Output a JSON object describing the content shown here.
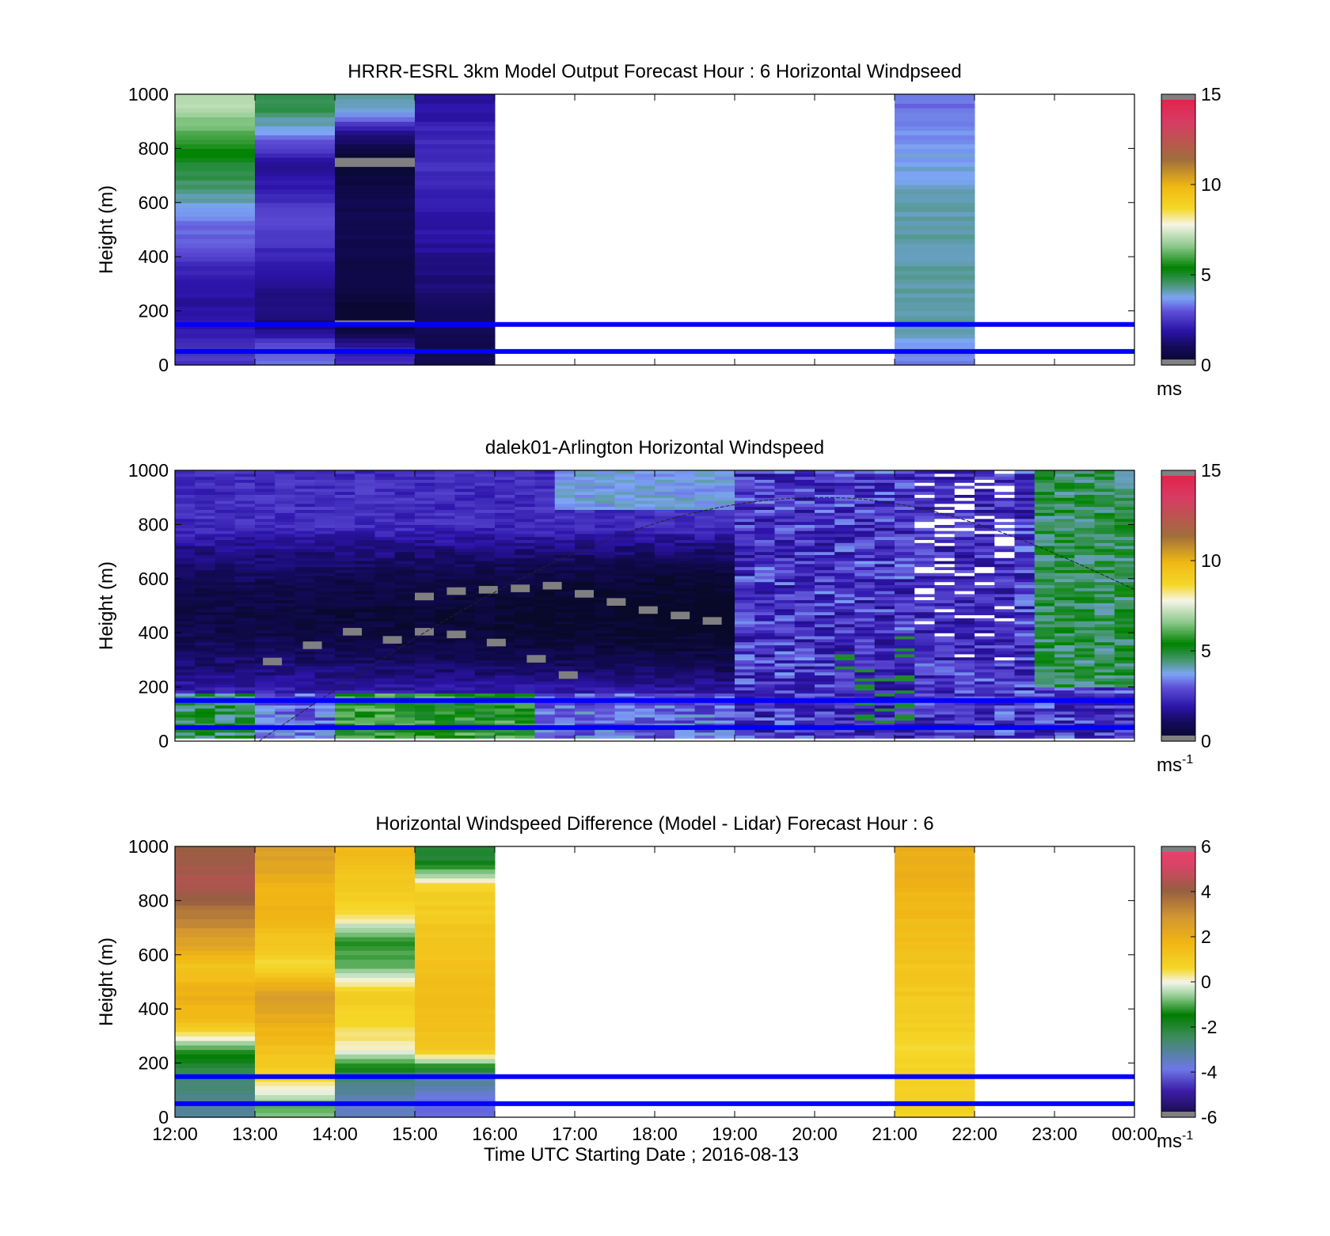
{
  "colors": {
    "ref_line": "#0000ff",
    "pbl_curve": "#222222",
    "axis": "#000000"
  },
  "x_tick_labels": [
    "12:00",
    "13:00",
    "14:00",
    "15:00",
    "16:00",
    "17:00",
    "18:00",
    "19:00",
    "20:00",
    "21:00",
    "22:00",
    "23:00",
    "00:00"
  ],
  "chart_data": [
    {
      "type": "heatmap",
      "title": "HRRR-ESRL 3km Model Output   Forecast Hour : 6 Horizontal Windpseed",
      "xlabel": "",
      "ylabel": "Height (m)",
      "xlim_hours": [
        12,
        24
      ],
      "ylim": [
        0,
        1000
      ],
      "y_ticks": [
        0,
        200,
        400,
        600,
        800,
        1000
      ],
      "colorbar": {
        "min": 0,
        "max": 15,
        "ticks": [
          0,
          5,
          10,
          15
        ],
        "unit": "ms",
        "scheme": "windspeed"
      },
      "reference_heights_m": [
        150,
        50
      ],
      "bin_height_m": 100,
      "columns": [
        {
          "start_hour": 12,
          "end_hour": 13,
          "top_m": 1000,
          "values": [
            2.5,
            2.0,
            1.8,
            2.2,
            3.0,
            3.5,
            4.5,
            5.0,
            6.0,
            7.0
          ]
        },
        {
          "start_hour": 13,
          "end_hour": 14,
          "top_m": 1000,
          "values": [
            3.2,
            1.2,
            1.5,
            1.8,
            2.5,
            3.0,
            2.0,
            1.8,
            3.5,
            4.8
          ]
        },
        {
          "start_hour": 14,
          "end_hour": 15,
          "top_m": 1000,
          "values": [
            2.2,
            0.0,
            0.4,
            0.6,
            0.8,
            0.8,
            0.7,
            0.0,
            1.5,
            4.2
          ]
        },
        {
          "start_hour": 15,
          "end_hour": 16,
          "top_m": 1000,
          "values": [
            0.8,
            1.0,
            1.2,
            1.5,
            1.8,
            2.0,
            2.2,
            2.4,
            2.3,
            1.8
          ]
        },
        {
          "start_hour": 21,
          "end_hour": 22,
          "top_m": 1000,
          "values": [
            3.5,
            4.2,
            4.2,
            4.2,
            4.2,
            4.2,
            4.0,
            3.8,
            3.6,
            3.3
          ]
        }
      ]
    },
    {
      "type": "heatmap",
      "title": "dalek01-Arlington  Horizontal Windspeed",
      "xlabel": "",
      "ylabel": "Height (m)",
      "xlim_hours": [
        12,
        24
      ],
      "ylim": [
        0,
        1000
      ],
      "y_ticks": [
        0,
        200,
        400,
        600,
        800,
        1000
      ],
      "colorbar": {
        "min": 0,
        "max": 15,
        "ticks": [
          0,
          5,
          10,
          15
        ],
        "unit": "ms",
        "unit_exponent": "-1",
        "scheme": "windspeed"
      },
      "reference_heights_m": [
        150,
        50
      ],
      "pbl_curve": {
        "start_hour": 13.05,
        "start_m": 0,
        "peak_hour": 20.1,
        "peak_m": 900,
        "end_hour": 24,
        "end_m": 560
      },
      "gray_band_low": [
        [
          13.1,
          280
        ],
        [
          13.6,
          340
        ],
        [
          14.1,
          390
        ],
        [
          14.6,
          360
        ],
        [
          15.0,
          390
        ],
        [
          15.4,
          380
        ],
        [
          15.9,
          350
        ],
        [
          16.4,
          290
        ],
        [
          16.8,
          230
        ]
      ],
      "gray_band_high": [
        [
          15.0,
          520
        ],
        [
          15.4,
          540
        ],
        [
          15.8,
          545
        ],
        [
          16.2,
          550
        ],
        [
          16.6,
          560
        ],
        [
          17.0,
          530
        ],
        [
          17.4,
          500
        ],
        [
          17.8,
          470
        ],
        [
          18.2,
          450
        ],
        [
          18.6,
          430
        ]
      ],
      "notes": "Lidar windspeed: low values (0-2) in 200-800 m during 12:00-19:00, green (5-6) near surface 12:00-16:00, light blue/white speckle after 19:00, green column near 23:00-24:00 above 200 m."
    },
    {
      "type": "heatmap",
      "title": "Horizontal Windspeed Difference (Model - Lidar) Forecast Hour : 6",
      "xlabel": "Time UTC  Starting Date ; 2016-08-13",
      "ylabel": "Height (m)",
      "xlim_hours": [
        12,
        24
      ],
      "ylim": [
        0,
        1000
      ],
      "y_ticks": [
        0,
        200,
        400,
        600,
        800,
        1000
      ],
      "colorbar": {
        "min": -6,
        "max": 6,
        "ticks": [
          -6,
          -4,
          -2,
          0,
          2,
          4,
          6
        ],
        "unit": "ms",
        "unit_exponent": "-1",
        "scheme": "difference"
      },
      "reference_heights_m": [
        150,
        50
      ],
      "bin_height_m": 100,
      "columns": [
        {
          "start_hour": 12,
          "end_hour": 13,
          "top_m": 1000,
          "values": [
            -3.0,
            -2.5,
            -1.2,
            1.5,
            2.0,
            1.2,
            2.5,
            3.5,
            4.5,
            4.2
          ]
        },
        {
          "start_hour": 13,
          "end_hour": 14,
          "top_m": 1000,
          "values": [
            -0.8,
            0.8,
            1.3,
            2.0,
            2.8,
            0.5,
            1.2,
            1.8,
            1.8,
            2.5
          ]
        },
        {
          "start_hour": 14,
          "end_hour": 15,
          "top_m": 1000,
          "values": [
            -3.5,
            -2.5,
            0.2,
            0.6,
            1.0,
            -0.8,
            -1.2,
            0.5,
            1.0,
            1.6
          ]
        },
        {
          "start_hour": 15,
          "end_hour": 16,
          "top_m": 1000,
          "values": [
            -4.0,
            -3.0,
            1.3,
            1.4,
            1.5,
            1.4,
            1.2,
            1.0,
            0.8,
            -2.0
          ]
        },
        {
          "start_hour": 21,
          "end_hour": 22,
          "top_m": 1000,
          "values": [
            0.8,
            0.8,
            0.6,
            0.9,
            1.1,
            1.2,
            1.5,
            1.6,
            1.8,
            2.0
          ]
        }
      ]
    }
  ]
}
